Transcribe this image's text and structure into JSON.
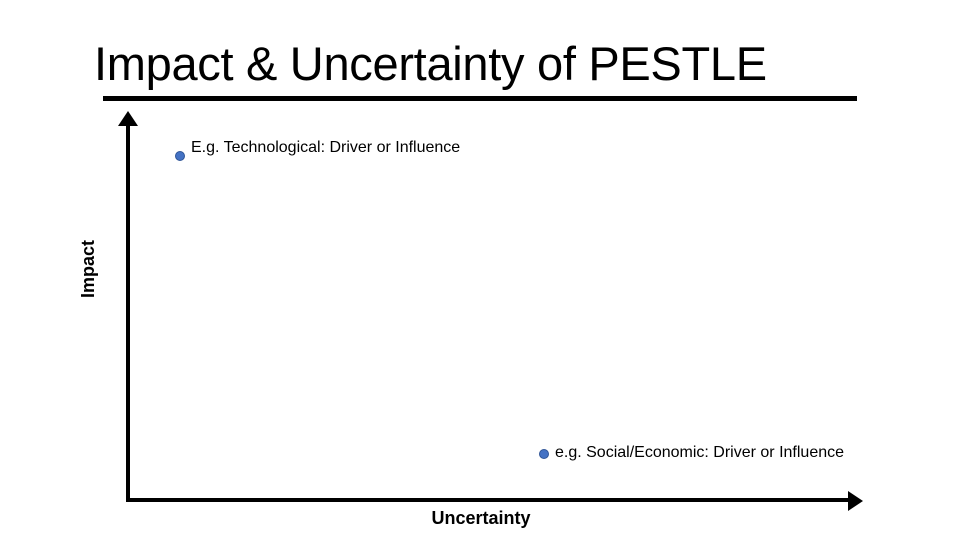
{
  "slide": {
    "title": "Impact & Uncertainty of PESTLE"
  },
  "diagram": {
    "y_axis_label": "Impact",
    "x_axis_label": "Uncertainty",
    "point_color": "#4472c4",
    "points": [
      {
        "label": "E.g. Technological: Driver or Influence"
      },
      {
        "label": "e.g. Social/Economic: Driver or Influence"
      }
    ]
  }
}
